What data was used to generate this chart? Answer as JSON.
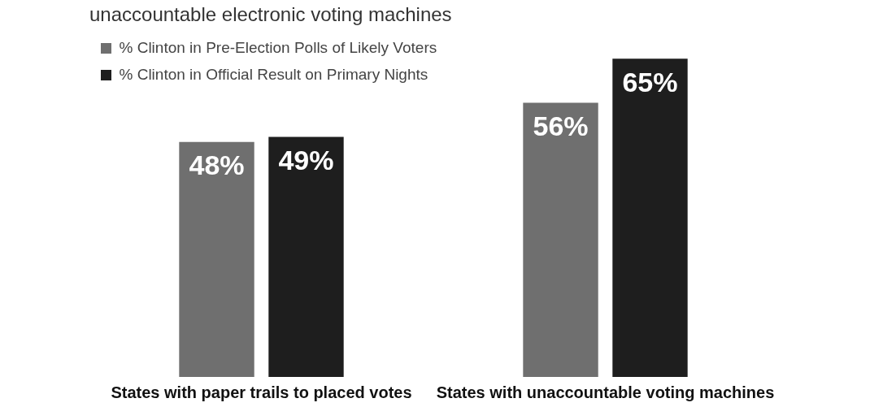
{
  "chart_data": {
    "type": "bar",
    "title": "unaccountable electronic voting machines",
    "categories": [
      "States with paper trails to placed votes",
      "States with unaccountable voting machines"
    ],
    "series": [
      {
        "name": "% Clinton in Pre-Election Polls of Likely Voters",
        "color": "#6f6f6f",
        "values": [
          48,
          56
        ],
        "value_labels": [
          "48%",
          "56%"
        ]
      },
      {
        "name": "% Clinton in Official Result on Primary Nights",
        "color": "#1e1e1e",
        "values": [
          49,
          65
        ],
        "value_labels": [
          "49%",
          "65%"
        ]
      }
    ],
    "tick_labels": "x",
    "grid": false,
    "legend": "top left"
  }
}
